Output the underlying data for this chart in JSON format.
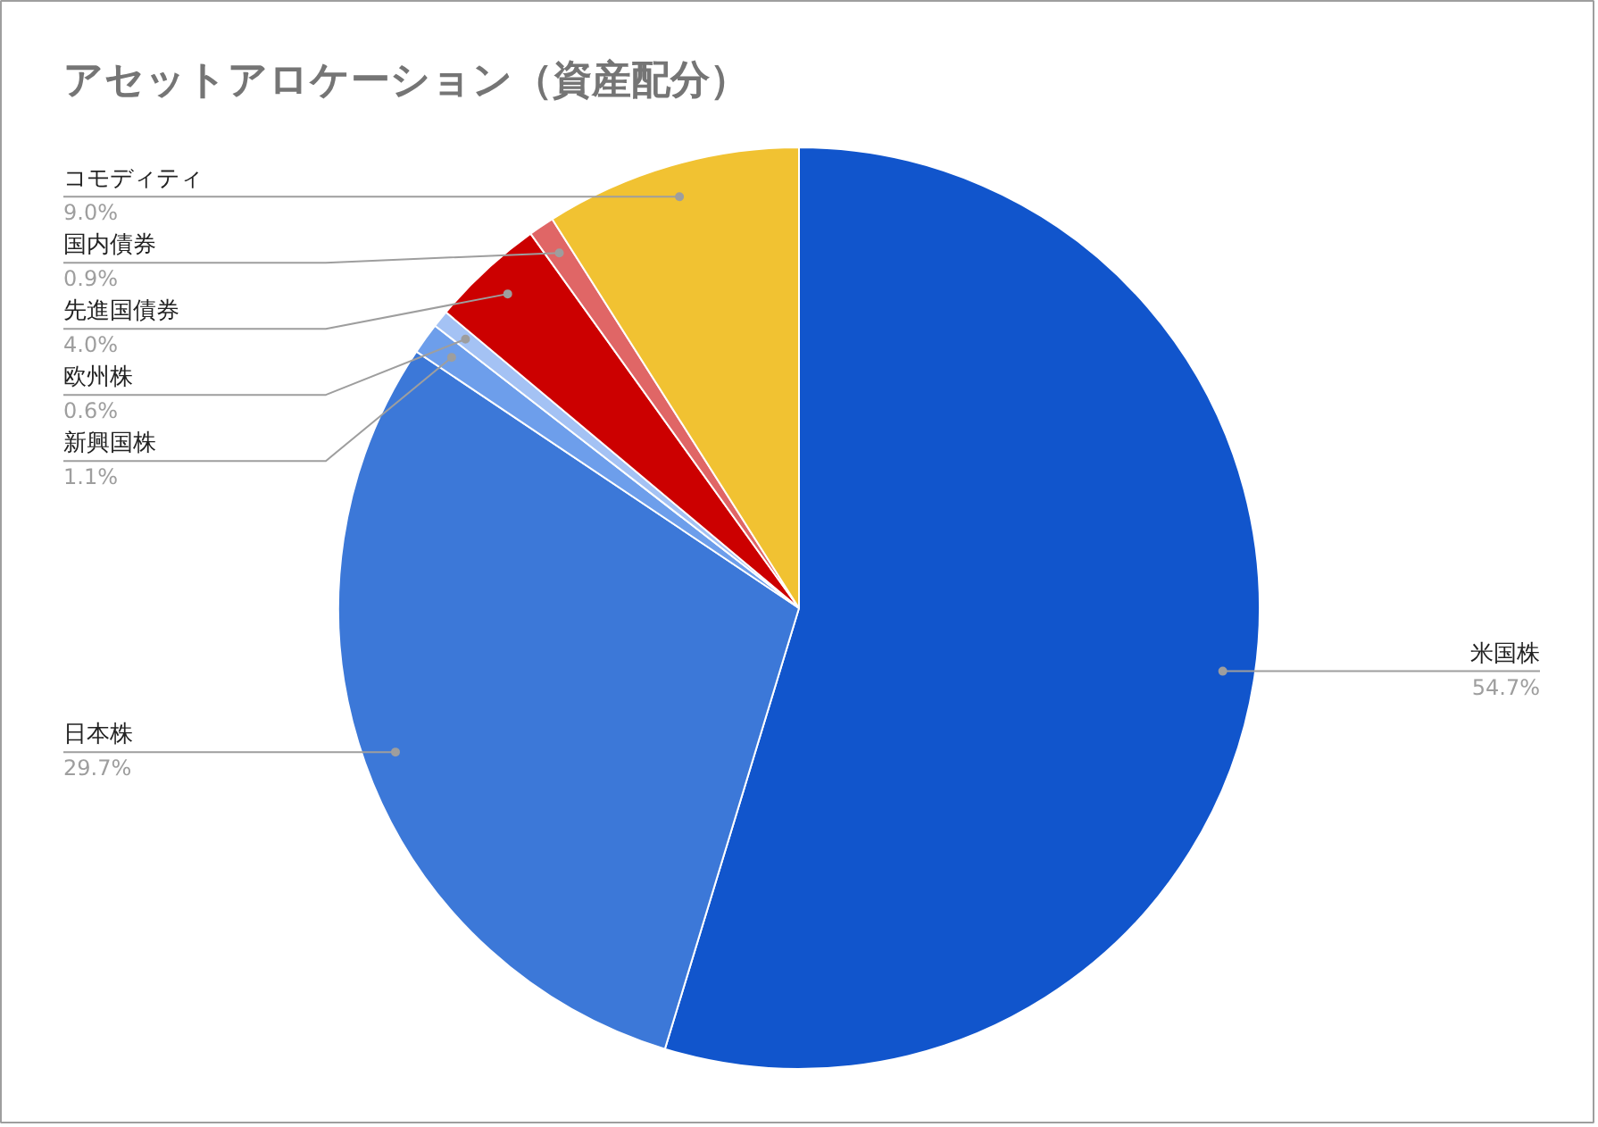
{
  "chart_data": {
    "type": "pie",
    "title": "アセットアロケーション（資産配分）",
    "categories": [
      "米国株",
      "日本株",
      "新興国株",
      "欧州株",
      "先進国債券",
      "国内債券",
      "コモディティ"
    ],
    "values": [
      54.7,
      29.7,
      1.1,
      0.6,
      4.0,
      0.9,
      9.0
    ],
    "value_labels": [
      "54.7%",
      "29.7%",
      "1.1%",
      "0.6%",
      "4.0%",
      "0.9%",
      "9.0%"
    ],
    "colors": [
      "#1155cc",
      "#3c78d8",
      "#6d9eeb",
      "#a4c2f4",
      "#cc0000",
      "#e06666",
      "#f1c232"
    ]
  }
}
